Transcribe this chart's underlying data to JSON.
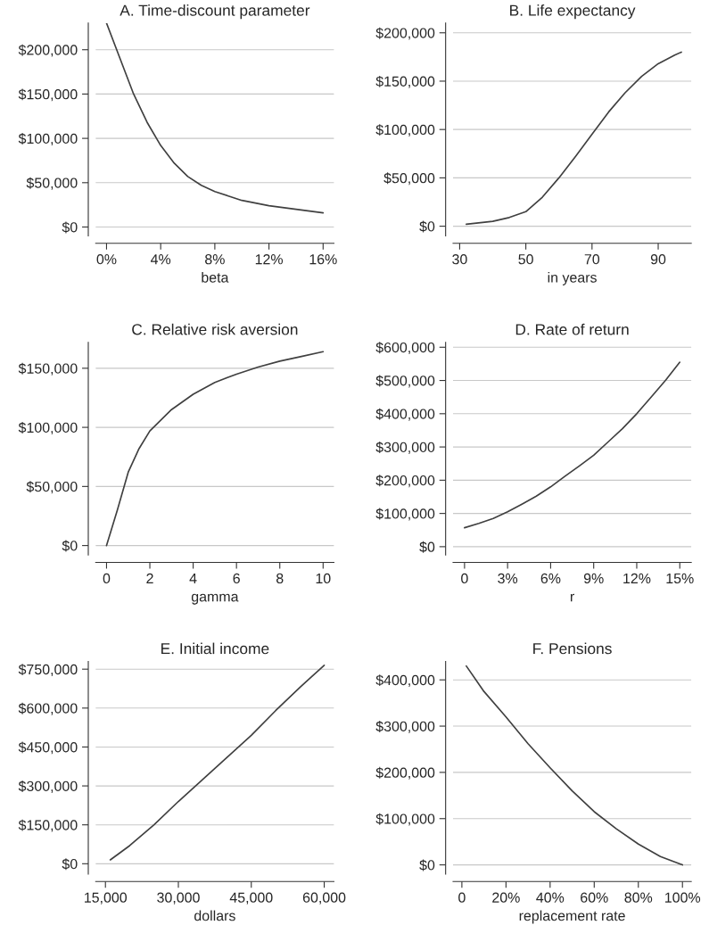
{
  "chart_data": [
    {
      "type": "line",
      "title": "A. Time-discount parameter",
      "xlabel": "beta",
      "grid": "y",
      "x": [
        0,
        1,
        2,
        3,
        4,
        5,
        6,
        7,
        8,
        9,
        10,
        11,
        12,
        13,
        14,
        15,
        16
      ],
      "series": [
        {
          "color": "#404040",
          "values": [
            230000,
            190000,
            150000,
            118000,
            92000,
            72000,
            57000,
            47000,
            40000,
            35000,
            30000,
            27000,
            24000,
            22000,
            20000,
            18000,
            16000
          ]
        }
      ],
      "xlim": [
        -0.8,
        16.8
      ],
      "ylim": [
        -10000,
        230000
      ],
      "xticks": [
        {
          "value": 0,
          "label": "0%"
        },
        {
          "value": 4,
          "label": "4%"
        },
        {
          "value": 8,
          "label": "8%"
        },
        {
          "value": 12,
          "label": "12%"
        },
        {
          "value": 16,
          "label": "16%"
        }
      ],
      "yticks": [
        {
          "value": 0,
          "label": "$0"
        },
        {
          "value": 50000,
          "label": "$50,000"
        },
        {
          "value": 100000,
          "label": "$100,000"
        },
        {
          "value": 150000,
          "label": "$150,000"
        },
        {
          "value": 200000,
          "label": "$200,000"
        }
      ]
    },
    {
      "type": "line",
      "title": "B. Life expectancy",
      "xlabel": "in years",
      "grid": "y",
      "x": [
        32,
        40,
        45,
        50,
        55,
        60,
        65,
        70,
        75,
        80,
        85,
        90,
        95,
        97
      ],
      "series": [
        {
          "color": "#404040",
          "values": [
            2000,
            5000,
            9000,
            15000,
            30000,
            50000,
            72000,
            95000,
            118000,
            138000,
            155000,
            168000,
            177000,
            180000
          ]
        }
      ],
      "xlim": [
        28,
        100
      ],
      "ylim": [
        -10000,
        210000
      ],
      "xticks": [
        30,
        50,
        70,
        90
      ],
      "yticks": [
        {
          "value": 0,
          "label": "$0"
        },
        {
          "value": 50000,
          "label": "$50,000"
        },
        {
          "value": 100000,
          "label": "$100,000"
        },
        {
          "value": 150000,
          "label": "$150,000"
        },
        {
          "value": 200000,
          "label": "$200,000"
        }
      ]
    },
    {
      "type": "line",
      "title": "C. Relative risk aversion",
      "xlabel": "gamma",
      "grid": "y",
      "x": [
        0,
        0.5,
        1,
        1.5,
        2,
        3,
        4,
        5,
        6,
        7,
        8,
        9,
        10
      ],
      "series": [
        {
          "color": "#404040",
          "values": [
            0,
            30000,
            62000,
            82000,
            97000,
            115000,
            128000,
            138000,
            145000,
            151000,
            156000,
            160000,
            164000
          ]
        }
      ],
      "xlim": [
        -0.5,
        10.5
      ],
      "ylim": [
        -8000,
        172000
      ],
      "xticks": [
        0,
        2,
        4,
        6,
        8,
        10
      ],
      "yticks": [
        {
          "value": 0,
          "label": "$0"
        },
        {
          "value": 50000,
          "label": "$50,000"
        },
        {
          "value": 100000,
          "label": "$100,000"
        },
        {
          "value": 150000,
          "label": "$150,000"
        }
      ]
    },
    {
      "type": "line",
      "title": "D. Rate of return",
      "xlabel": "r",
      "grid": "y",
      "x": [
        0,
        1,
        2,
        3,
        4,
        5,
        6,
        7,
        8,
        9,
        10,
        11,
        12,
        13,
        14,
        15
      ],
      "series": [
        {
          "color": "#404040",
          "values": [
            57000,
            70000,
            85000,
            105000,
            128000,
            152000,
            180000,
            212000,
            243000,
            275000,
            315000,
            355000,
            400000,
            450000,
            500000,
            555000
          ]
        }
      ],
      "xlim": [
        -0.8,
        15.8
      ],
      "ylim": [
        -25000,
        615000
      ],
      "xticks": [
        {
          "value": 0,
          "label": "0"
        },
        {
          "value": 3,
          "label": "3%"
        },
        {
          "value": 6,
          "label": "6%"
        },
        {
          "value": 9,
          "label": "9%"
        },
        {
          "value": 12,
          "label": "12%"
        },
        {
          "value": 15,
          "label": "15%"
        }
      ],
      "yticks": [
        {
          "value": 0,
          "label": "$0"
        },
        {
          "value": 100000,
          "label": "$100,000"
        },
        {
          "value": 200000,
          "label": "$200,000"
        },
        {
          "value": 300000,
          "label": "$300,000"
        },
        {
          "value": 400000,
          "label": "$400,000"
        },
        {
          "value": 500000,
          "label": "$500,000"
        },
        {
          "value": 600000,
          "label": "$600,000"
        }
      ]
    },
    {
      "type": "line",
      "title": "E. Initial income",
      "xlabel": "dollars",
      "grid": "y",
      "x": [
        16000,
        20000,
        25000,
        30000,
        35000,
        40000,
        45000,
        50000,
        55000,
        60000
      ],
      "series": [
        {
          "color": "#404040",
          "values": [
            15000,
            70000,
            150000,
            240000,
            325000,
            410000,
            495000,
            590000,
            680000,
            765000
          ]
        }
      ],
      "xlim": [
        13000,
        62000
      ],
      "ylim": [
        -40000,
        780000
      ],
      "xticks": [
        {
          "value": 15000,
          "label": "15,000"
        },
        {
          "value": 30000,
          "label": "30,000"
        },
        {
          "value": 45000,
          "label": "45,000"
        },
        {
          "value": 60000,
          "label": "60,000"
        }
      ],
      "yticks": [
        {
          "value": 0,
          "label": "$0"
        },
        {
          "value": 150000,
          "label": "$150,000"
        },
        {
          "value": 300000,
          "label": "$300,000"
        },
        {
          "value": 450000,
          "label": "$450,000"
        },
        {
          "value": 600000,
          "label": "$600,000"
        },
        {
          "value": 750000,
          "label": "$750,000"
        }
      ]
    },
    {
      "type": "line",
      "title": "F. Pensions",
      "xlabel": "replacement rate",
      "grid": "y",
      "x": [
        2,
        10,
        20,
        30,
        40,
        50,
        60,
        70,
        80,
        90,
        100
      ],
      "series": [
        {
          "color": "#404040",
          "values": [
            430000,
            375000,
            320000,
            262000,
            210000,
            160000,
            115000,
            78000,
            45000,
            18000,
            0
          ]
        }
      ],
      "xlim": [
        -4,
        104
      ],
      "ylim": [
        -20000,
        440000
      ],
      "xticks": [
        {
          "value": 0,
          "label": "0"
        },
        {
          "value": 20,
          "label": "20%"
        },
        {
          "value": 40,
          "label": "40%"
        },
        {
          "value": 60,
          "label": "60%"
        },
        {
          "value": 80,
          "label": "80%"
        },
        {
          "value": 100,
          "label": "100%"
        }
      ],
      "yticks": [
        {
          "value": 0,
          "label": "$0"
        },
        {
          "value": 100000,
          "label": "$100,000"
        },
        {
          "value": 200000,
          "label": "$200,000"
        },
        {
          "value": 300000,
          "label": "$300,000"
        },
        {
          "value": 400000,
          "label": "$400,000"
        }
      ]
    }
  ]
}
